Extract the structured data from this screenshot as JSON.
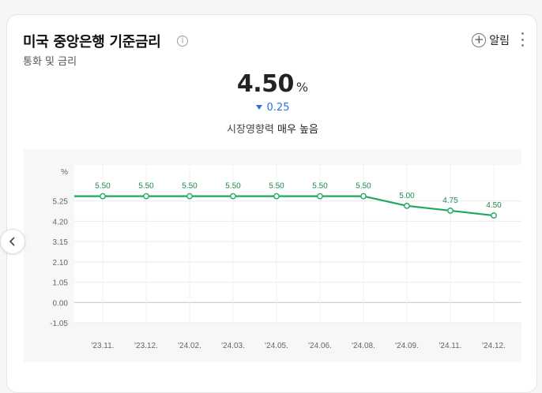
{
  "header": {
    "title": "미국 중앙은행 기준금리",
    "subtitle": "통화 및 금리",
    "alarm_label": "알림"
  },
  "summary": {
    "value": "4.50",
    "unit": "%",
    "change": "0.25",
    "impact_label": "시장영향력",
    "impact_value": "매우 높음"
  },
  "colors": {
    "line": "#1ea862",
    "change_down": "#2f6fe4"
  },
  "chart_data": {
    "type": "line",
    "y_unit_label": "%",
    "categories": [
      "'23.11.",
      "'23.12.",
      "'24.02.",
      "'24.03.",
      "'24.05.",
      "'24.06.",
      "'24.08.",
      "'24.09.",
      "'24.11.",
      "'24.12."
    ],
    "values": [
      5.5,
      5.5,
      5.5,
      5.5,
      5.5,
      5.5,
      5.5,
      5.0,
      4.75,
      4.5
    ],
    "point_labels": [
      "5.50",
      "5.50",
      "5.50",
      "5.50",
      "5.50",
      "5.50",
      "5.50",
      "5.00",
      "4.75",
      "4.50"
    ],
    "y_ticks": [
      "5.25",
      "4.20",
      "3.15",
      "2.10",
      "1.05",
      "0.00",
      "-1.05"
    ],
    "y_tick_values": [
      5.25,
      4.2,
      3.15,
      2.1,
      1.05,
      0.0,
      -1.05
    ],
    "ylim": [
      -1.05,
      6.3
    ],
    "grid": true
  }
}
